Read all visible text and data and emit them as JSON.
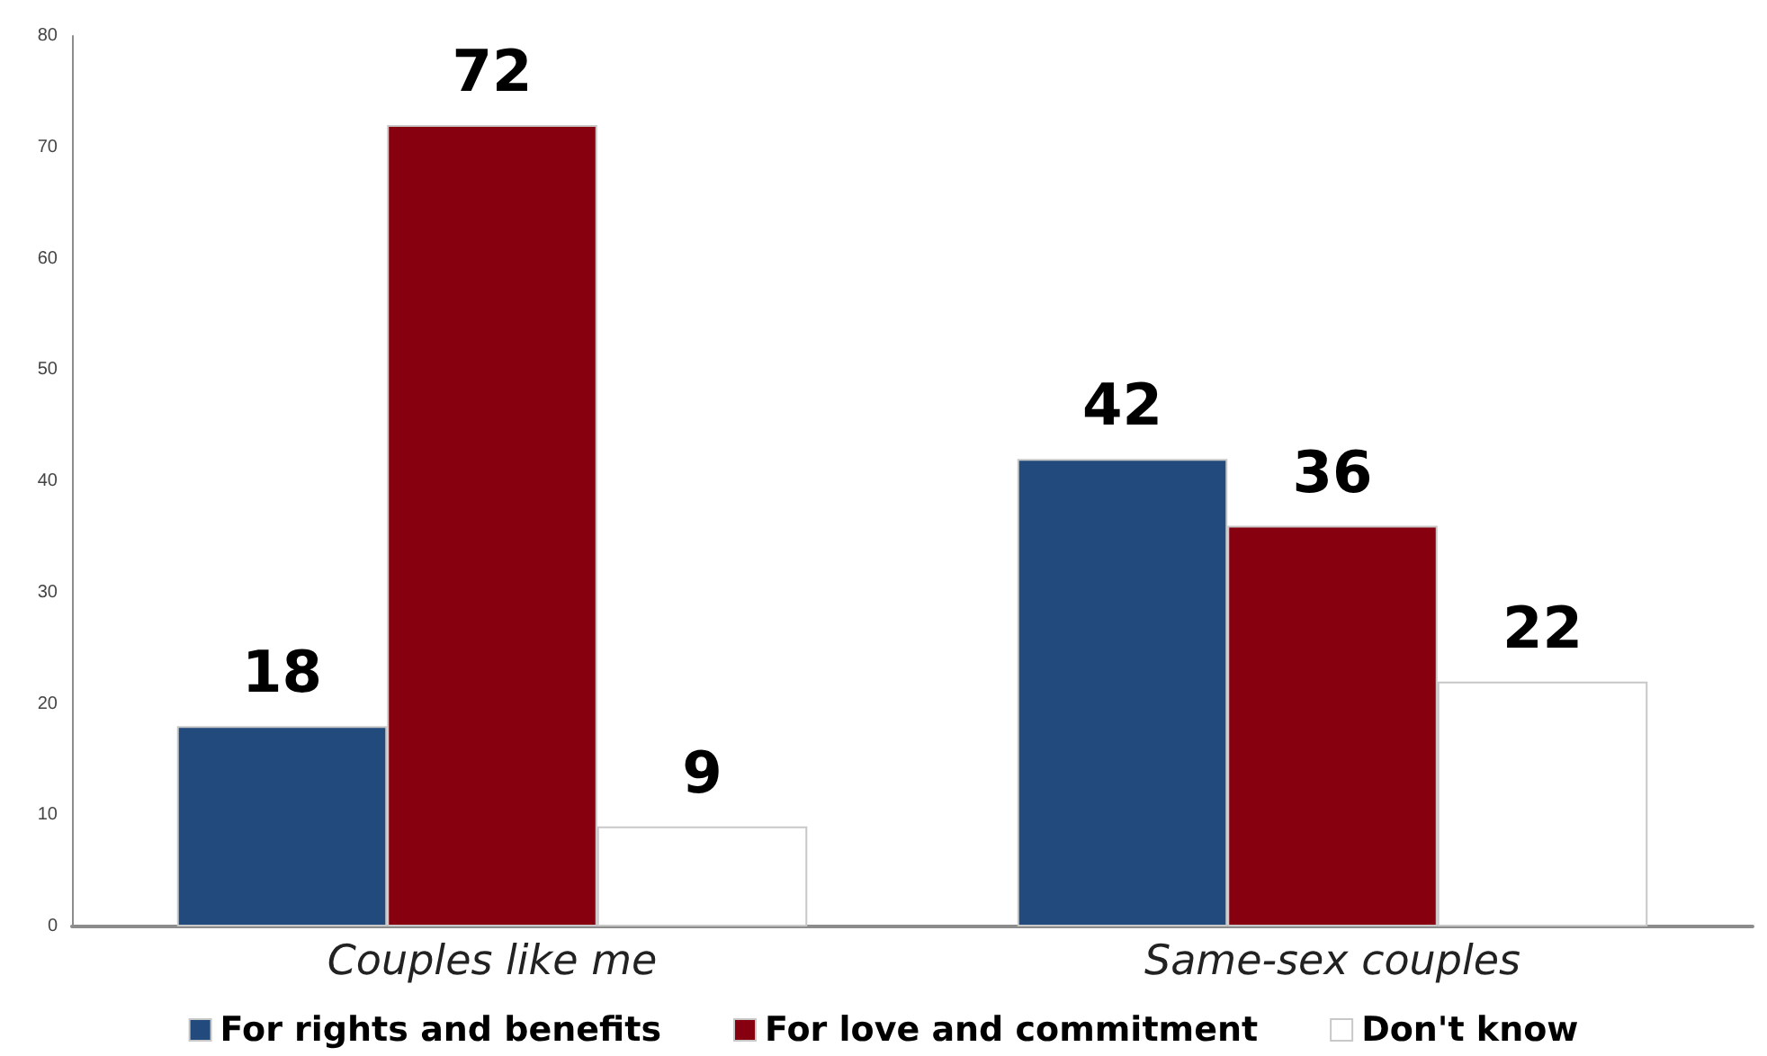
{
  "chart_data": {
    "type": "bar",
    "categories": [
      "Couples like me",
      "Same-sex couples"
    ],
    "series": [
      {
        "name": "For rights and benefits",
        "color": "#234a7c",
        "values": [
          18,
          42
        ]
      },
      {
        "name": "For love and commitment",
        "color": "#86000f",
        "values": [
          72,
          36
        ]
      },
      {
        "name": "Don't know",
        "color": "#ffffff",
        "values": [
          9,
          22
        ]
      }
    ],
    "ylim": [
      0,
      80
    ],
    "yticks": [
      0,
      10,
      20,
      30,
      40,
      50,
      60,
      70,
      80
    ],
    "grid": false,
    "legend": "bottom",
    "data_labels": true
  }
}
